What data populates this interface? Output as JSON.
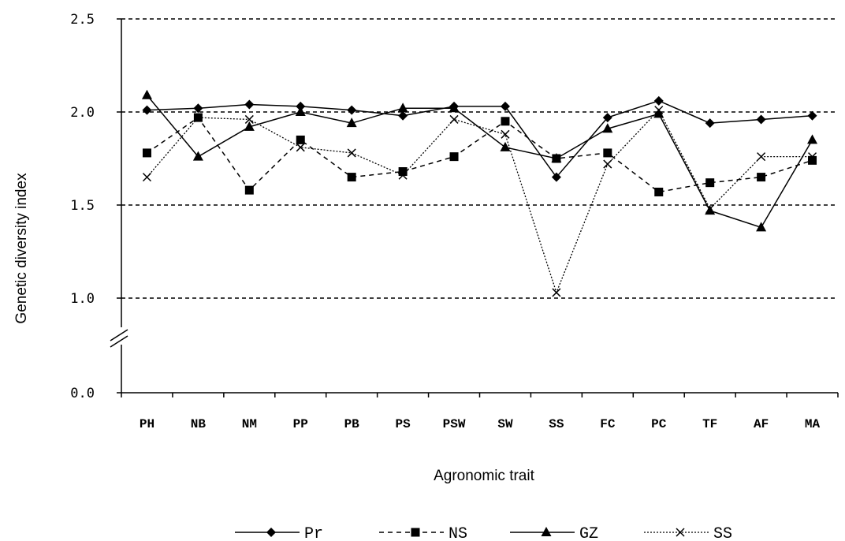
{
  "chart_data": {
    "type": "line",
    "xlabel": "Agronomic trait",
    "ylabel": "Genetic diversity index",
    "categories": [
      "PH",
      "NB",
      "NM",
      "PP",
      "PB",
      "PS",
      "PSW",
      "SW",
      "SS",
      "FC",
      "PC",
      "TF",
      "AF",
      "MA"
    ],
    "yticks": [
      "0.0",
      "1.0",
      "1.5",
      "2.0",
      "2.5"
    ],
    "ylim": [
      0,
      2.5
    ],
    "axis_break": "between 0.0 and 1.0",
    "grid": "horizontal dashed at 1.0, 1.5, 2.0, 2.5",
    "legend_position": "bottom",
    "series": [
      {
        "name": "Pr",
        "line": "solid",
        "marker": "diamond",
        "color": "#000000",
        "values": [
          2.01,
          2.02,
          2.04,
          2.03,
          2.01,
          1.98,
          2.03,
          2.03,
          1.65,
          1.97,
          2.06,
          1.94,
          1.96,
          1.98
        ]
      },
      {
        "name": "NS",
        "line": "dashed",
        "marker": "square",
        "color": "#000000",
        "values": [
          1.78,
          1.97,
          1.58,
          1.85,
          1.65,
          1.68,
          1.76,
          1.95,
          1.75,
          1.78,
          1.57,
          1.62,
          1.65,
          1.74
        ]
      },
      {
        "name": "GZ",
        "line": "solid",
        "marker": "triangle",
        "color": "#000000",
        "values": [
          2.09,
          1.76,
          1.92,
          2.0,
          1.94,
          2.02,
          2.02,
          1.81,
          1.75,
          1.91,
          1.99,
          1.47,
          1.38,
          1.85
        ]
      },
      {
        "name": "SS",
        "line": "dotted",
        "marker": "x",
        "color": "#000000",
        "values": [
          1.65,
          1.97,
          1.96,
          1.81,
          1.78,
          1.66,
          1.96,
          1.88,
          1.03,
          1.72,
          2.01,
          1.48,
          1.76,
          1.76
        ]
      }
    ]
  }
}
